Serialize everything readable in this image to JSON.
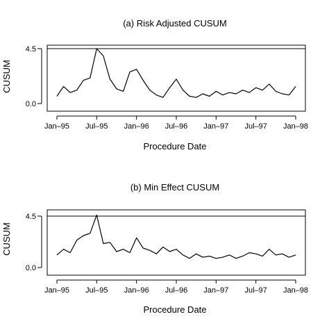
{
  "chart_data": [
    {
      "type": "line",
      "title": "(a) Risk Adjusted CUSUM",
      "xlabel": "Procedure Date",
      "ylabel": "CUSUM",
      "x_ticks": [
        "Jan–95",
        "Jul–95",
        "Jan–96",
        "Jul–96",
        "Jan–97",
        "Jul–97",
        "Jan–98"
      ],
      "y_ticks": [
        "0.0",
        "4.5"
      ],
      "ylim": [
        0,
        4.5
      ],
      "xlim": [
        "Jan–95",
        "Jan–98"
      ],
      "threshold": 4.5,
      "grid": false,
      "series": [
        {
          "x": [
            "Jan–95",
            "Feb–95",
            "Mar–95",
            "Apr–95",
            "May–95",
            "Jun–95",
            "Jul–95",
            "Aug–95",
            "Sep–95",
            "Oct–95",
            "Nov–95",
            "Dec–95",
            "Jan–96",
            "Feb–96",
            "Mar–96",
            "Apr–96",
            "May–96",
            "Jun–96",
            "Jul–96",
            "Aug–96",
            "Sep–96",
            "Oct–96",
            "Nov–96",
            "Dec–96",
            "Jan–97",
            "Feb–97",
            "Mar–97",
            "Apr–97",
            "May–97",
            "Jun–97",
            "Jul–97",
            "Aug–97",
            "Sep–97",
            "Oct–97",
            "Nov–97",
            "Dec–97",
            "Jan–98"
          ],
          "values": [
            0.6,
            1.4,
            0.9,
            1.1,
            1.9,
            2.1,
            4.5,
            3.9,
            2.0,
            1.2,
            1.0,
            2.6,
            2.8,
            1.9,
            1.1,
            0.7,
            0.5,
            1.3,
            2.0,
            1.1,
            0.6,
            0.5,
            0.8,
            0.6,
            1.0,
            0.7,
            0.9,
            0.8,
            1.1,
            0.9,
            1.3,
            1.1,
            1.6,
            1.0,
            0.8,
            0.7,
            1.4
          ]
        }
      ]
    },
    {
      "type": "line",
      "title": "(b) Min Effect CUSUM",
      "xlabel": "Procedure Date",
      "ylabel": "CUSUM",
      "x_ticks": [
        "Jan–95",
        "Jul–95",
        "Jan–96",
        "Jul–96",
        "Jan–97",
        "Jul–97",
        "Jan–98"
      ],
      "y_ticks": [
        "0.0",
        "4.5"
      ],
      "ylim": [
        0,
        4.5
      ],
      "xlim": [
        "Jan–95",
        "Jan–98"
      ],
      "threshold": 4.5,
      "grid": false,
      "series": [
        {
          "x": [
            "Jan–95",
            "Feb–95",
            "Mar–95",
            "Apr–95",
            "May–95",
            "Jun–95",
            "Jul–95",
            "Aug–95",
            "Sep–95",
            "Oct–95",
            "Nov–95",
            "Dec–95",
            "Jan–96",
            "Feb–96",
            "Mar–96",
            "Apr–96",
            "May–96",
            "Jun–96",
            "Jul–96",
            "Aug–96",
            "Sep–96",
            "Oct–96",
            "Nov–96",
            "Dec–96",
            "Jan–97",
            "Feb–97",
            "Mar–97",
            "Apr–97",
            "May–97",
            "Jun–97",
            "Jul–97",
            "Aug–97",
            "Sep–97",
            "Oct–97",
            "Nov–97",
            "Dec–97",
            "Jan–98"
          ],
          "values": [
            1.1,
            1.6,
            1.3,
            2.4,
            2.8,
            3.0,
            4.6,
            2.1,
            2.2,
            1.4,
            1.6,
            1.3,
            2.6,
            1.7,
            1.5,
            1.2,
            1.8,
            1.4,
            1.6,
            1.1,
            0.8,
            1.2,
            0.9,
            1.0,
            0.8,
            0.9,
            1.1,
            0.8,
            1.0,
            1.3,
            1.2,
            1.0,
            1.6,
            1.1,
            1.2,
            0.9,
            1.1
          ]
        }
      ]
    }
  ]
}
